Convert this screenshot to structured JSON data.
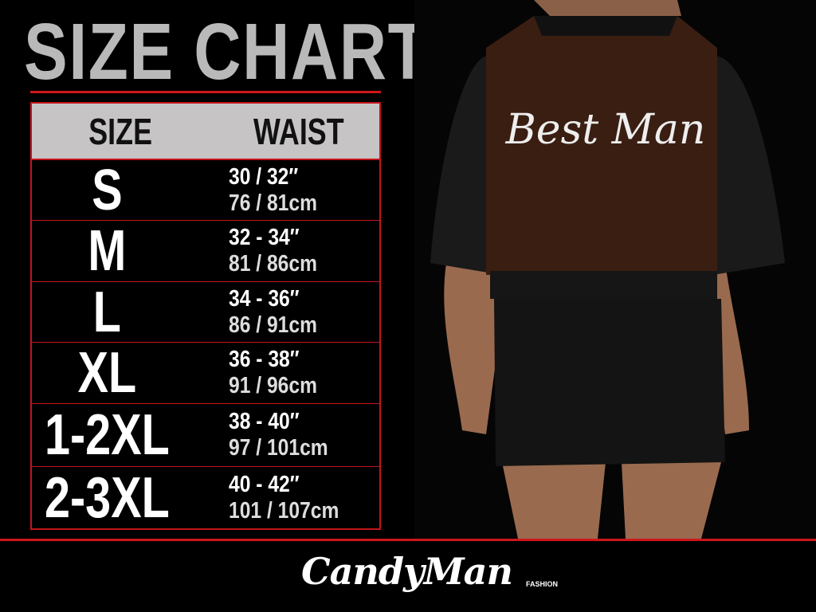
{
  "title": "SIZE CHART",
  "table": {
    "headers": [
      "SIZE",
      "WAIST"
    ],
    "rows": [
      {
        "size": "S",
        "inches": "30 / 32″",
        "cm": "76 / 81cm"
      },
      {
        "size": "M",
        "inches": "32 - 34″",
        "cm": "81 / 86cm"
      },
      {
        "size": "L",
        "inches": "34 - 36″",
        "cm": "86 / 91cm"
      },
      {
        "size": "XL",
        "inches": "36 - 38″",
        "cm": "91 / 96cm"
      },
      {
        "size": "1-2XL",
        "inches": "38 - 40″",
        "cm": "97 / 101cm"
      },
      {
        "size": "2-3XL",
        "inches": "40 - 42″",
        "cm": "101 / 107cm"
      }
    ]
  },
  "photo": {
    "print_text": "Best Man"
  },
  "brand": {
    "name": "CandyMan",
    "sub": "FASHION"
  },
  "colors": {
    "accent": "#d0161b",
    "header_bg": "#c7c4c5",
    "title": "#b9b9b9"
  }
}
